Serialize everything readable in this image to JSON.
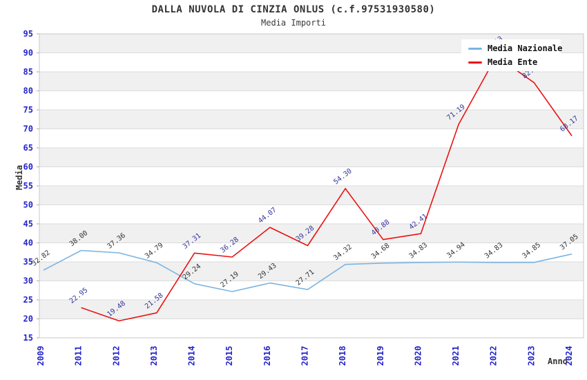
{
  "title": "DALLA NUVOLA DI CINZIA ONLUS (c.f.97531930580)",
  "subtitle": "Media Importi",
  "chart_data": {
    "type": "line",
    "title": "DALLA NUVOLA DI CINZIA ONLUS (c.f.97531930580)",
    "subtitle": "Media Importi",
    "xlabel": "Anno",
    "ylabel": "Media",
    "categories": [
      "2009",
      "2011",
      "2012",
      "2013",
      "2014",
      "2015",
      "2016",
      "2017",
      "2018",
      "2019",
      "2020",
      "2021",
      "2022",
      "2023",
      "2024"
    ],
    "series": [
      {
        "name": "Media Nazionale",
        "color": "#7cb4e2",
        "label_color": "#333333",
        "values": [
          32.82,
          38.0,
          37.36,
          34.79,
          29.24,
          27.19,
          29.43,
          27.71,
          34.32,
          34.68,
          34.83,
          34.94,
          34.83,
          34.85,
          37.05
        ]
      },
      {
        "name": "Media Ente",
        "color": "#ea1111",
        "label_color": "#333399",
        "values": [
          null,
          22.95,
          19.48,
          21.58,
          37.31,
          36.28,
          44.07,
          39.28,
          54.3,
          40.88,
          42.41,
          71.19,
          89.13,
          82.14,
          68.17
        ]
      }
    ],
    "ylim": [
      15,
      95
    ],
    "ytick_step": 5,
    "grid": "horizontal gridlines with alternating gray bands",
    "legend_position": "top-right",
    "tick_label_color": "#2323cb",
    "band_color": "#f0f0f0",
    "gridline_color": "#dcdcdc",
    "plot_border_color": "#c8c8c8"
  }
}
